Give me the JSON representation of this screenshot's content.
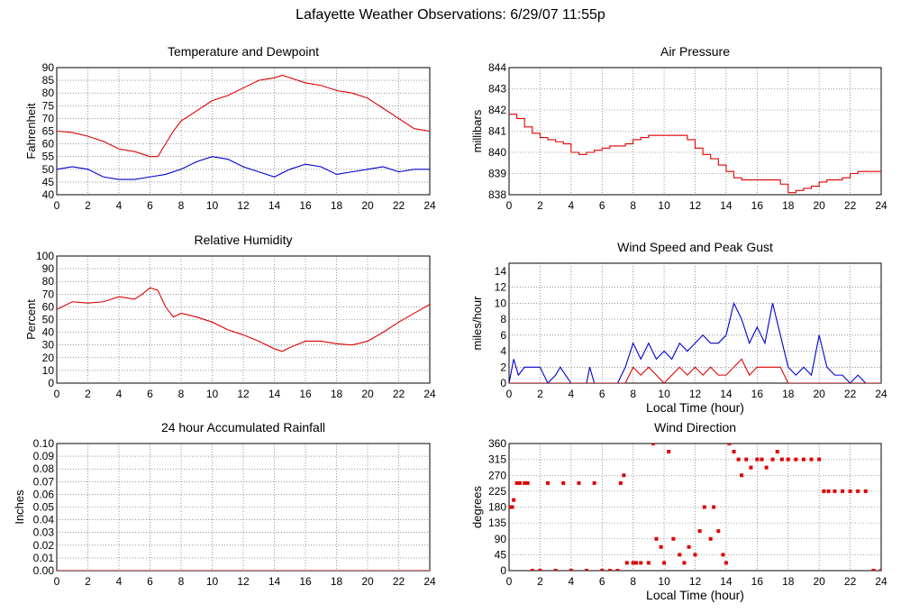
{
  "page": {
    "title": "Lafayette Weather Observations: 6/29/07 11:55p"
  },
  "colors": {
    "red": "#dd0000",
    "blue": "#0000cc",
    "grid": "#555555"
  },
  "chart_data": [
    {
      "id": "temp",
      "type": "line",
      "title": "Temperature and Dewpoint",
      "xlabel": "",
      "ylabel": "Fahrenheit",
      "xlim": [
        0,
        24
      ],
      "ylim": [
        40,
        90
      ],
      "xticks": [
        0,
        2,
        4,
        6,
        8,
        10,
        12,
        14,
        16,
        18,
        20,
        22,
        24
      ],
      "yticks": [
        40,
        45,
        50,
        55,
        60,
        65,
        70,
        75,
        80,
        85,
        90
      ],
      "grid": true,
      "series": [
        {
          "color": "red",
          "x": [
            0,
            1,
            2,
            3,
            4,
            5,
            6,
            6.5,
            7,
            7.5,
            8,
            9,
            10,
            11,
            12,
            13,
            14,
            14.5,
            15,
            16,
            17,
            18,
            19,
            20,
            21,
            22,
            23,
            24
          ],
          "y": [
            65,
            64.5,
            63,
            61,
            58,
            57,
            55,
            55,
            60,
            65,
            69,
            73,
            77,
            79,
            82,
            85,
            86,
            87,
            86,
            84,
            83,
            81,
            80,
            78,
            74,
            70,
            66,
            65
          ]
        },
        {
          "color": "blue",
          "x": [
            0,
            1,
            2,
            3,
            4,
            5,
            6,
            7,
            8,
            9,
            10,
            11,
            12,
            13,
            14,
            15,
            16,
            17,
            18,
            19,
            20,
            21,
            22,
            23,
            24
          ],
          "y": [
            50,
            51,
            50,
            47,
            46,
            46,
            47,
            48,
            50,
            53,
            55,
            54,
            51,
            49,
            47,
            50,
            52,
            51,
            48,
            49,
            50,
            51,
            49,
            50,
            50
          ]
        }
      ]
    },
    {
      "id": "pressure",
      "type": "line",
      "title": "Air Pressure",
      "xlabel": "",
      "ylabel": "millibars",
      "xlim": [
        0,
        24
      ],
      "ylim": [
        838,
        844
      ],
      "xticks": [
        0,
        2,
        4,
        6,
        8,
        10,
        12,
        14,
        16,
        18,
        20,
        22,
        24
      ],
      "yticks": [
        838,
        839,
        840,
        841,
        842,
        843,
        844
      ],
      "grid": true,
      "series": [
        {
          "color": "red",
          "step": true,
          "x": [
            0,
            0.5,
            1,
            1.5,
            2,
            2.5,
            3,
            3.5,
            4,
            4.5,
            5,
            5.5,
            6,
            6.5,
            7,
            7.5,
            8,
            8.5,
            9,
            10,
            11,
            11.5,
            12,
            12.5,
            13,
            13.5,
            14,
            14.5,
            15,
            16,
            17,
            17.5,
            18,
            18.5,
            19,
            19.5,
            20,
            20.5,
            21,
            21.5,
            22,
            22.5,
            23,
            24
          ],
          "y": [
            841.8,
            841.6,
            841.2,
            840.9,
            840.7,
            840.6,
            840.5,
            840.4,
            840.0,
            839.9,
            840.0,
            840.1,
            840.2,
            840.3,
            840.3,
            840.4,
            840.6,
            840.7,
            840.8,
            840.8,
            840.8,
            840.6,
            840.2,
            839.9,
            839.7,
            839.4,
            839.1,
            838.8,
            838.7,
            838.7,
            838.7,
            838.5,
            838.1,
            838.2,
            838.3,
            838.4,
            838.6,
            838.7,
            838.7,
            838.8,
            839.0,
            839.1,
            839.1,
            839.1
          ]
        }
      ]
    },
    {
      "id": "humidity",
      "type": "line",
      "title": "Relative Humidity",
      "xlabel": "",
      "ylabel": "Percent",
      "xlim": [
        0,
        24
      ],
      "ylim": [
        0,
        100
      ],
      "xticks": [
        0,
        2,
        4,
        6,
        8,
        10,
        12,
        14,
        16,
        18,
        20,
        22,
        24
      ],
      "yticks": [
        0,
        10,
        20,
        30,
        40,
        50,
        60,
        70,
        80,
        90,
        100
      ],
      "grid": true,
      "series": [
        {
          "color": "red",
          "x": [
            0,
            1,
            2,
            3,
            4,
            5,
            5.5,
            6,
            6.5,
            7,
            7.5,
            8,
            9,
            10,
            11,
            12,
            13,
            14,
            14.5,
            15,
            16,
            17,
            18,
            19,
            20,
            21,
            22,
            23,
            24
          ],
          "y": [
            58,
            64,
            63,
            64,
            68,
            66,
            70,
            75,
            73,
            60,
            52,
            55,
            52,
            48,
            42,
            38,
            33,
            27,
            25,
            28,
            33,
            33,
            31,
            30,
            33,
            40,
            48,
            55,
            62
          ]
        }
      ]
    },
    {
      "id": "wind",
      "type": "line",
      "title": "Wind Speed and Peak Gust",
      "xlabel": "Local Time (hour)",
      "ylabel": "miles/hour",
      "xlim": [
        0,
        24
      ],
      "ylim": [
        0,
        15
      ],
      "xticks": [
        0,
        2,
        4,
        6,
        8,
        10,
        12,
        14,
        16,
        18,
        20,
        22,
        24
      ],
      "yticks": [
        0,
        2,
        4,
        6,
        8,
        10,
        12,
        14
      ],
      "grid": true,
      "series": [
        {
          "color": "blue",
          "x": [
            0,
            0.3,
            0.6,
            1,
            1.5,
            2,
            2.5,
            3,
            3.3,
            4,
            5,
            5.2,
            5.5,
            6,
            7,
            7.5,
            8,
            8.5,
            9,
            9.5,
            10,
            10.5,
            11,
            11.5,
            12,
            12.5,
            13,
            13.5,
            14,
            14.5,
            15,
            15.5,
            16,
            16.5,
            17,
            17.5,
            18,
            18.5,
            19,
            19.5,
            20,
            20.5,
            21,
            21.5,
            22,
            22.5,
            23,
            23.5,
            24
          ],
          "y": [
            0,
            3,
            1,
            2,
            2,
            2,
            0,
            1,
            2,
            0,
            0,
            2,
            0,
            0,
            0,
            2,
            5,
            3,
            5,
            3,
            4,
            3,
            5,
            4,
            5,
            6,
            5,
            5,
            6,
            10,
            8,
            5,
            7,
            5,
            10,
            6,
            2,
            1,
            2,
            1,
            6,
            2,
            1,
            1,
            0,
            1,
            0,
            0,
            0
          ]
        },
        {
          "color": "red",
          "x": [
            0,
            7.5,
            8,
            8.5,
            9,
            9.5,
            10,
            10.5,
            11,
            11.5,
            12,
            12.5,
            13,
            13.5,
            14,
            14.5,
            15,
            15.5,
            16,
            16.5,
            17,
            17.5,
            18,
            20,
            24
          ],
          "y": [
            0,
            0,
            2,
            1,
            2,
            1,
            0,
            1,
            2,
            1,
            2,
            1,
            2,
            1,
            1,
            2,
            3,
            1,
            2,
            2,
            2,
            2,
            0,
            0,
            0
          ]
        }
      ]
    },
    {
      "id": "rain",
      "type": "line",
      "title": "24 hour Accumulated Rainfall",
      "xlabel": "",
      "ylabel": "Inches",
      "xlim": [
        0,
        24
      ],
      "ylim": [
        0,
        0.1
      ],
      "xticks": [
        0,
        2,
        4,
        6,
        8,
        10,
        12,
        14,
        16,
        18,
        20,
        22,
        24
      ],
      "yticks": [
        "0.00",
        "0.01",
        "0.02",
        "0.03",
        "0.04",
        "0.05",
        "0.06",
        "0.07",
        "0.08",
        "0.09",
        "0.10"
      ],
      "grid": true,
      "series": [
        {
          "color": "red",
          "x": [
            0,
            24
          ],
          "y": [
            0,
            0
          ]
        }
      ]
    },
    {
      "id": "direction",
      "type": "scatter",
      "title": "Wind Direction",
      "xlabel": "Local Time (hour)",
      "ylabel": "degrees",
      "xlim": [
        0,
        24
      ],
      "ylim": [
        0,
        360
      ],
      "xticks": [
        0,
        2,
        4,
        6,
        8,
        10,
        12,
        14,
        16,
        18,
        20,
        22,
        24
      ],
      "yticks": [
        0,
        45,
        90,
        135,
        180,
        225,
        270,
        315,
        360
      ],
      "grid": true,
      "series": [
        {
          "color": "red",
          "x": [
            0,
            0.2,
            0.3,
            0.5,
            0.7,
            1,
            1.2,
            1.5,
            2,
            2.5,
            3,
            3.5,
            4,
            4.5,
            5,
            5.5,
            6,
            6.5,
            7,
            7.2,
            7.4,
            7.6,
            8,
            8.2,
            8.5,
            9,
            9.3,
            9.5,
            9.8,
            10,
            10.3,
            10.6,
            11,
            11.3,
            11.6,
            12,
            12.3,
            12.6,
            13,
            13.2,
            13.5,
            13.8,
            14,
            14.2,
            14.5,
            14.8,
            15,
            15.3,
            15.6,
            16,
            16.3,
            16.6,
            17,
            17.3,
            17.6,
            18,
            18.5,
            19,
            19.5,
            20,
            20.3,
            20.6,
            21,
            21.5,
            22,
            22.5,
            23,
            23.5,
            24
          ],
          "y": [
            180,
            180,
            200,
            248,
            248,
            248,
            248,
            0,
            0,
            248,
            0,
            248,
            0,
            248,
            0,
            248,
            0,
            0,
            0,
            248,
            270,
            22,
            22,
            22,
            22,
            22,
            360,
            90,
            67,
            22,
            337,
            90,
            45,
            22,
            67,
            45,
            112,
            180,
            90,
            180,
            112,
            45,
            22,
            360,
            337,
            315,
            270,
            315,
            292,
            315,
            315,
            292,
            315,
            337,
            315,
            315,
            315,
            315,
            315,
            315,
            225,
            225,
            225,
            225,
            225,
            225,
            225,
            0,
            0
          ]
        }
      ]
    }
  ]
}
